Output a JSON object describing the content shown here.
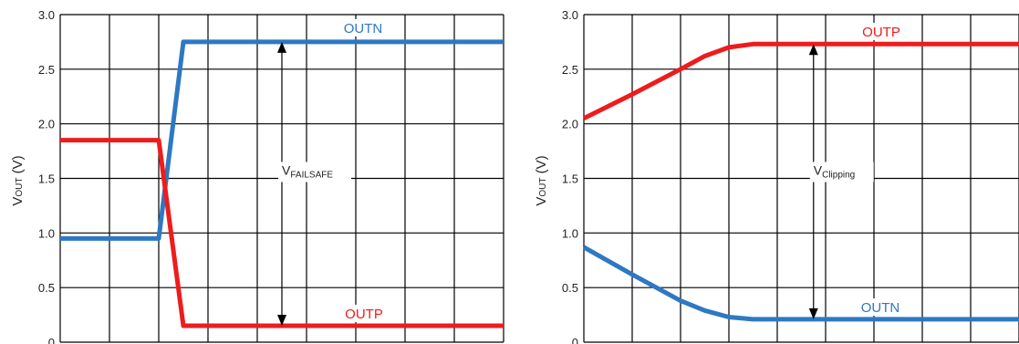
{
  "colors": {
    "red": "#ee1c1c",
    "blue": "#2e78c3",
    "grid": "#000000"
  },
  "chart_data": [
    {
      "type": "line",
      "ylabel_main": "V",
      "ylabel_sub": "OUT",
      "ylabel_unit": " (V)",
      "ylim": [
        0,
        3.0
      ],
      "xlim": [
        0,
        9
      ],
      "yticks": [
        "0",
        "0.5",
        "1.0",
        "1.5",
        "2.0",
        "2.5",
        "3.0"
      ],
      "ytick_values": [
        0,
        0.5,
        1.0,
        1.5,
        2.0,
        2.5,
        3.0
      ],
      "x_grid_count": 9,
      "grid": true,
      "series": [
        {
          "name": "OUTN",
          "color": "#2e78c3",
          "x": [
            0,
            2.0,
            2.5,
            9
          ],
          "y": [
            0.95,
            0.95,
            2.75,
            2.75
          ]
        },
        {
          "name": "OUTP",
          "color": "#ee1c1c",
          "x": [
            0,
            2.0,
            2.5,
            9
          ],
          "y": [
            1.85,
            1.85,
            0.15,
            0.15
          ]
        }
      ],
      "annotation": {
        "main": "V",
        "sub": "FAILSAFE",
        "x": 4.5,
        "y_top": 2.75,
        "y_bottom": 0.15,
        "label_y": 1.45
      }
    },
    {
      "type": "line",
      "ylabel_main": "V",
      "ylabel_sub": "OUT",
      "ylabel_unit": " (V)",
      "ylim": [
        0,
        3.0
      ],
      "xlim": [
        0,
        9
      ],
      "yticks": [
        "0",
        "0.5",
        "1.0",
        "1.5",
        "2.0",
        "2.5",
        "3.0"
      ],
      "ytick_values": [
        0,
        0.5,
        1.0,
        1.5,
        2.0,
        2.5,
        3.0
      ],
      "x_grid_count": 9,
      "grid": true,
      "series": [
        {
          "name": "OUTP",
          "color": "#ee1c1c",
          "x": [
            0,
            1.0,
            2.0,
            2.5,
            3.0,
            3.5,
            4.0,
            9
          ],
          "y": [
            2.05,
            2.27,
            2.5,
            2.62,
            2.7,
            2.73,
            2.73,
            2.73
          ]
        },
        {
          "name": "OUTN",
          "color": "#2e78c3",
          "x": [
            0,
            1.0,
            2.0,
            2.5,
            3.0,
            3.5,
            4.0,
            9
          ],
          "y": [
            0.87,
            0.62,
            0.38,
            0.29,
            0.23,
            0.21,
            0.21,
            0.21
          ]
        }
      ],
      "annotation": {
        "main": "V",
        "sub": "Clipping",
        "x": 4.75,
        "y_top": 2.73,
        "y_bottom": 0.21,
        "label_y": 1.45
      }
    }
  ]
}
